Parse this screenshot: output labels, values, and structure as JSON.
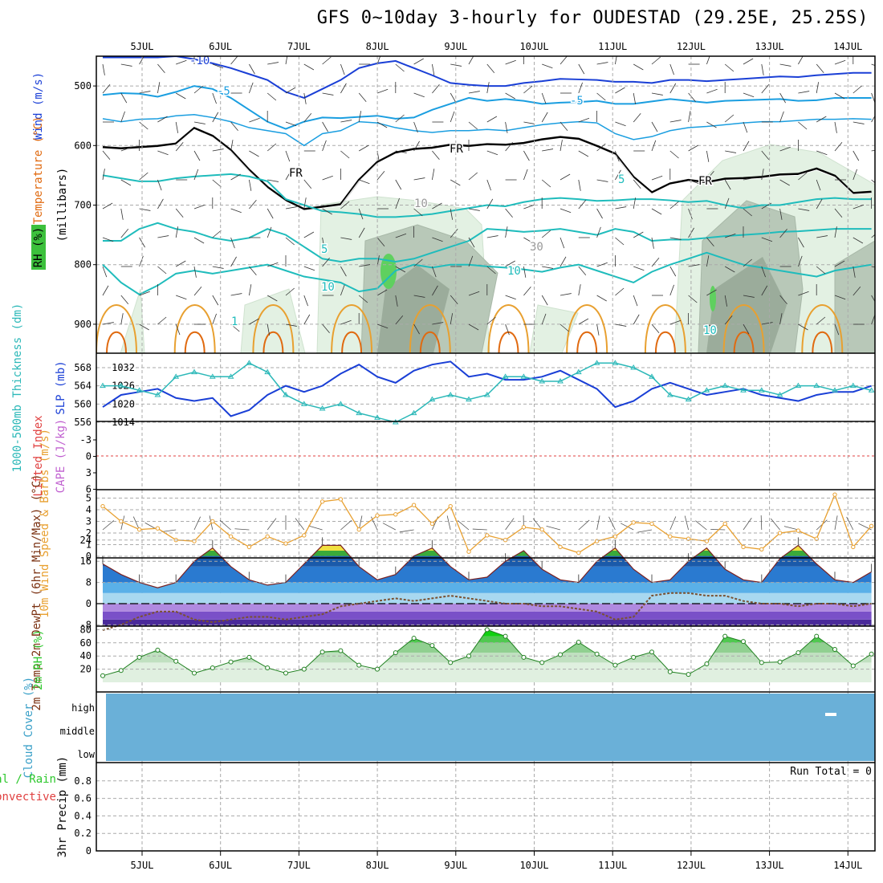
{
  "title": "GFS 0~10day 3-hourly for OUDESTAD (29.25E, 25.25S)",
  "dates": [
    "5JUL",
    "6JUL",
    "7JUL",
    "8JUL",
    "9JUL",
    "10JUL",
    "11JUL",
    "12JUL",
    "13JUL",
    "14JUL"
  ],
  "colors": {
    "temp_cold": "#1a3fd6",
    "temp_mid": "#1a9ee0",
    "temp_teal": "#1fbcbc",
    "temp_warm": "#e8a030",
    "temp_hot": "#e06a10",
    "freezing": "#000000",
    "rh_light": "#e3f1e3",
    "rh_mid": "#b8c8b8",
    "rh_dark": "#8ea08e",
    "rh_green": "#5fd05f",
    "cloud": "#6ab0d8",
    "slp": "#1a3fd6",
    "thick": "#2bb8b8",
    "wind": "#e8a030",
    "rh2m": "#2dc82d",
    "dewpt": "#7a5030"
  },
  "chart_data": [
    {
      "panel": "upper-air",
      "type": "heatmap",
      "ylabel_parts": [
        "Wind (m/s)",
        "Temperature (°C)",
        "RH (%)",
        "(millibars)"
      ],
      "yticks": [
        "500",
        "600",
        "700",
        "800",
        "900"
      ],
      "contour_labels": [
        "-10",
        "-5",
        "-5",
        "FR",
        "FR",
        "FR",
        "5",
        "5",
        "10",
        "10",
        "10",
        "10",
        "30",
        "1"
      ],
      "freezing_level_mb": [
        603,
        605,
        603,
        601,
        597,
        571,
        584,
        608,
        641,
        670,
        692,
        707,
        703,
        699,
        658,
        628,
        612,
        606,
        604,
        599,
        601,
        598,
        599,
        596,
        590,
        586,
        589,
        601,
        614,
        653,
        679,
        664,
        658,
        662,
        656,
        655,
        653,
        649,
        648,
        639,
        651,
        680,
        678
      ]
    },
    {
      "panel": "thickness-slp",
      "type": "line",
      "ylabel_left": "1000-500mb Thickness (dm)",
      "ylabel_right": "SLP (mb)",
      "yticks_left": [
        "556",
        "560",
        "564",
        "568"
      ],
      "yticks_right": [
        "1014",
        "1020",
        "1026",
        "1032"
      ],
      "series": [
        {
          "name": "SLP (mb)",
          "values": [
            1019,
            1023,
            1024,
            1025,
            1022,
            1021,
            1022,
            1016,
            1018,
            1023,
            1026,
            1024,
            1026,
            1030,
            1033,
            1029,
            1027,
            1031,
            1033,
            1034,
            1029,
            1030,
            1028,
            1028,
            1029,
            1031,
            1028,
            1025,
            1019,
            1021,
            1025,
            1027,
            1025,
            1023,
            1024,
            1025,
            1023,
            1022,
            1021,
            1023,
            1024,
            1024,
            1026
          ]
        },
        {
          "name": "1000-500mb Thickness (dm)",
          "values": [
            564,
            564,
            563,
            562,
            566,
            567,
            566,
            566,
            569,
            567,
            562,
            560,
            559,
            560,
            558,
            557,
            556,
            558,
            561,
            562,
            561,
            562,
            566,
            566,
            565,
            565,
            567,
            569,
            569,
            568,
            566,
            562,
            561,
            563,
            564,
            563,
            563,
            562,
            564,
            564,
            563,
            564,
            563
          ]
        }
      ]
    },
    {
      "panel": "stability",
      "type": "line",
      "ylabel_left": "Lifted Index",
      "ylabel_right": "CAPE (J/kg)",
      "yticks": [
        "-3",
        "0",
        "3",
        "6"
      ],
      "series": [
        {
          "name": "Lifted Index",
          "values": [
            0,
            0,
            0,
            0,
            0,
            0,
            0,
            0,
            0,
            0
          ]
        }
      ]
    },
    {
      "panel": "10m-wind",
      "type": "line",
      "ylabel": "10m Wind Speed & Barbs (m/s)",
      "yticks": [
        "0",
        "1",
        "2",
        "3",
        "4",
        "5"
      ],
      "series": [
        {
          "name": "10m Wind Speed (m/s)",
          "values": [
            4.3,
            3.0,
            2.3,
            2.4,
            1.4,
            1.3,
            3.0,
            1.7,
            0.8,
            1.7,
            1.1,
            1.8,
            4.7,
            4.9,
            2.3,
            3.5,
            3.6,
            4.4,
            2.8,
            4.3,
            0.4,
            1.8,
            1.4,
            2.5,
            2.3,
            0.8,
            0.3,
            1.3,
            1.7,
            2.9,
            2.8,
            1.7,
            1.5,
            1.3,
            2.8,
            0.8,
            0.6,
            2.0,
            2.2,
            1.5,
            5.3,
            0.8,
            2.6
          ]
        }
      ]
    },
    {
      "panel": "2m-temp",
      "type": "area",
      "ylabel": "2m Temp 2m DewPt (6hr Min/Max) (°C)",
      "yticks": [
        "24",
        "16",
        "8",
        "0",
        "-8"
      ],
      "series": [
        {
          "name": "2m Temp (°C)",
          "values": [
            15,
            11,
            8,
            6,
            8,
            16,
            21,
            14,
            9,
            7,
            8,
            15,
            22,
            22,
            14,
            9,
            11,
            18,
            21,
            14,
            9,
            10,
            16,
            20,
            13,
            9,
            8,
            16,
            21,
            13,
            8,
            9,
            16,
            21,
            13,
            9,
            8,
            17,
            22,
            15,
            9,
            8,
            12
          ]
        },
        {
          "name": "2m DewPt (°C)",
          "values": [
            -10,
            -8,
            -5,
            -3,
            -3,
            -6,
            -7,
            -6,
            -5,
            -5,
            -6,
            -5,
            -4,
            -1,
            0,
            1,
            2,
            1,
            2,
            3,
            2,
            1,
            0,
            0,
            -1,
            -1,
            -2,
            -3,
            -6,
            -5,
            3,
            4,
            4,
            3,
            3,
            1,
            0,
            0,
            -1,
            0,
            0,
            -1,
            0
          ]
        }
      ]
    },
    {
      "panel": "2m-rh",
      "type": "area",
      "ylabel": "2m RH (%)",
      "yticks": [
        "20",
        "40",
        "60",
        "80"
      ],
      "series": [
        {
          "name": "2m RH (%)",
          "values": [
            10,
            18,
            38,
            49,
            32,
            14,
            22,
            31,
            38,
            22,
            14,
            20,
            46,
            48,
            26,
            20,
            45,
            67,
            56,
            30,
            40,
            80,
            70,
            38,
            30,
            42,
            61,
            43,
            26,
            38,
            46,
            16,
            12,
            28,
            70,
            62,
            30,
            31,
            45,
            70,
            50,
            25,
            43
          ]
        }
      ]
    },
    {
      "panel": "cloud",
      "type": "heatmap",
      "ylabel": "Cloud Cover (%)",
      "yticks": [
        "high",
        "middle",
        "low"
      ]
    },
    {
      "panel": "precip",
      "type": "bar",
      "ylabel": "3hr Precip (mm)",
      "legend": [
        "Total / Rain",
        "Convective"
      ],
      "yticks": [
        "0",
        "0.2",
        "0.4",
        "0.6",
        "0.8"
      ],
      "run_total": "Run Total = 0",
      "series": [
        {
          "name": "3hr Precip (mm)",
          "values": [
            0,
            0,
            0,
            0,
            0,
            0,
            0,
            0,
            0,
            0
          ]
        }
      ]
    }
  ]
}
